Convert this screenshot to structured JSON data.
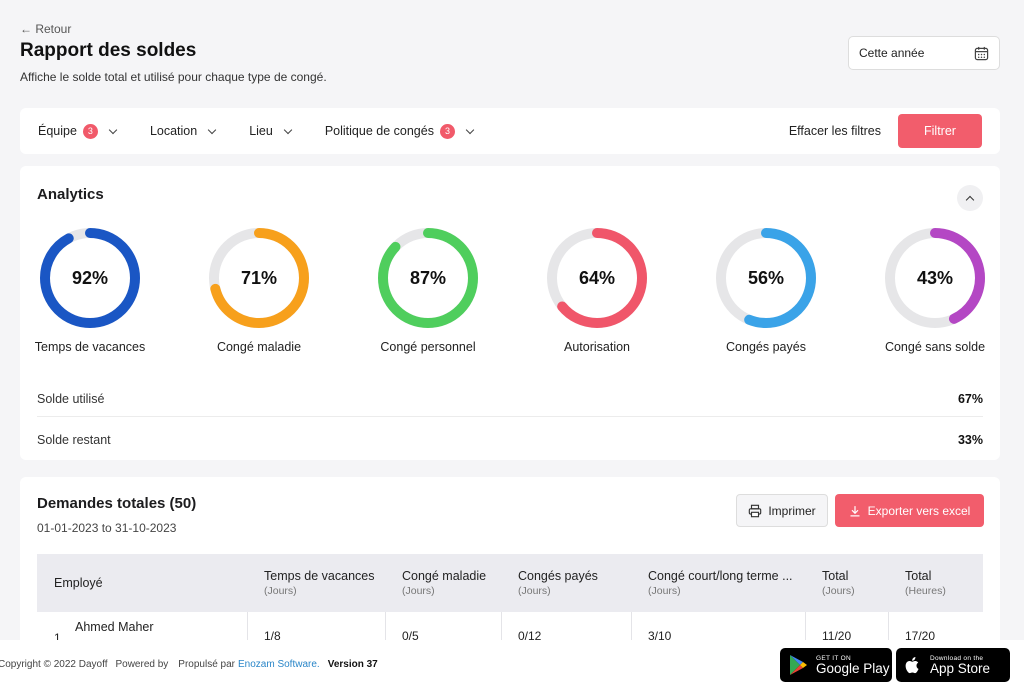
{
  "header": {
    "back_label": "← Retour",
    "title": "Rapport des soldes",
    "subtitle": "Affiche le solde total et utilisé pour chaque type de congé.",
    "date_range_value": "Cette année"
  },
  "filters": {
    "items": [
      {
        "label": "Équipe",
        "badge": "3"
      },
      {
        "label": "Location",
        "badge": ""
      },
      {
        "label": "Lieu",
        "badge": ""
      },
      {
        "label": "Politique de congés",
        "badge": "3"
      }
    ],
    "clear_label": "Effacer les filtres",
    "filter_button": "Filtrer"
  },
  "analytics": {
    "title": "Analytics",
    "donuts": [
      {
        "label": "Temps de vacances",
        "percent": 92,
        "display": "92%",
        "color": "#1a56c4"
      },
      {
        "label": "Congé maladie",
        "percent": 71,
        "display": "71%",
        "color": "#f7a01c"
      },
      {
        "label": "Congé personnel",
        "percent": 87,
        "display": "87%",
        "color": "#4fce5d"
      },
      {
        "label": "Autorisation",
        "percent": 64,
        "display": "64%",
        "color": "#f0566a"
      },
      {
        "label": "Congés payés",
        "percent": 56,
        "display": "56%",
        "color": "#3aa3e8"
      },
      {
        "label": "Congé sans solde",
        "percent": 43,
        "display": "43%",
        "color": "#b447c4"
      }
    ],
    "used_label": "Solde utilisé",
    "used_value": "67%",
    "remaining_label": "Solde restant",
    "remaining_value": "33%"
  },
  "requests": {
    "title": "Demandes totales (50)",
    "range": "01-01-2023 to 31-10-2023",
    "print_label": "Imprimer",
    "export_label": "Exporter vers excel",
    "columns": [
      {
        "label": "Employé",
        "sub": ""
      },
      {
        "label": "Temps de vacances",
        "sub": "(Jours)"
      },
      {
        "label": "Congé maladie",
        "sub": "(Jours)"
      },
      {
        "label": "Congés payés",
        "sub": "(Jours)"
      },
      {
        "label": "Congé court/long terme ...",
        "sub": "(Jours)"
      },
      {
        "label": "Total",
        "sub": "(Jours)"
      },
      {
        "label": "Total",
        "sub": "(Heures)"
      }
    ],
    "rows": [
      {
        "index": "1",
        "name": "Ahmed Maher",
        "cells": [
          "1/8",
          "0/5",
          "0/12",
          "3/10",
          "11/20",
          "17/20"
        ]
      }
    ]
  },
  "footer": {
    "copyright": "Copyright © 2022 Dayoff",
    "powered": "Powered by",
    "propulse": "Propulsé par",
    "brand": "Enozam Software.",
    "version": "Version  37",
    "google_small": "GET IT ON",
    "google_big": "Google Play",
    "apple_small": "Download on the",
    "apple_big": "App Store"
  }
}
